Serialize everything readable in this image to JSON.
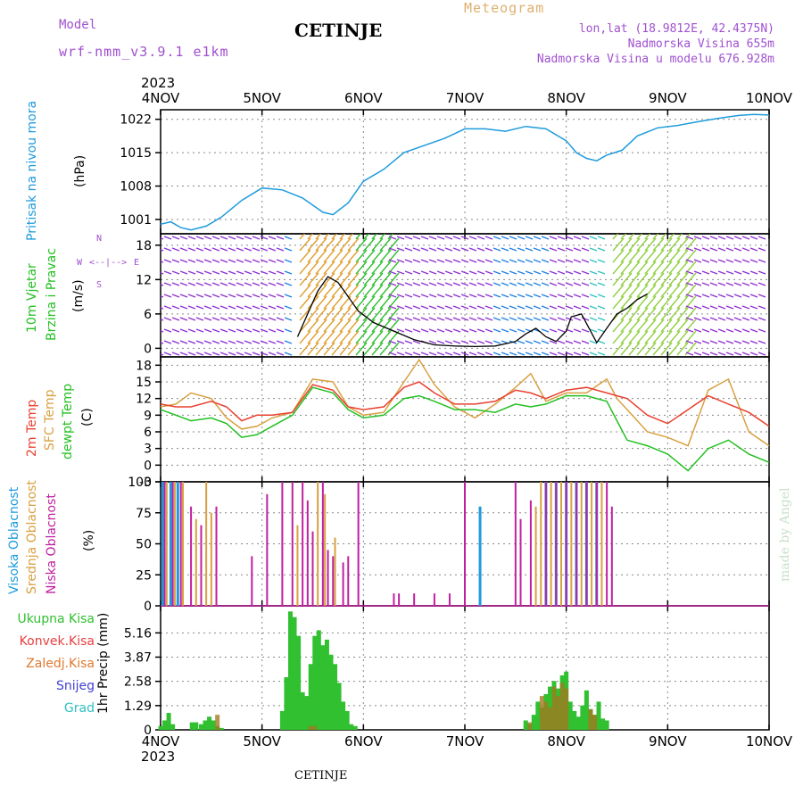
{
  "header": {
    "model_label": "Model",
    "model_name": "wrf-nmm_v3.9.1  e1km",
    "station": "CETINJE",
    "meteogram": "Meteogram",
    "lonlat": "lon,lat (18.9812E, 42.4375N)",
    "altitude": "Nadmorska Visina 655m",
    "model_altitude": "Nadmorska Visina u modelu 676.928m",
    "year_top": "2023",
    "year_bottom": "2023",
    "footer_station": "CETINJE",
    "watermark": "made by Angel"
  },
  "dates": [
    "4NOV",
    "5NOV",
    "6NOV",
    "7NOV",
    "8NOV",
    "9NOV",
    "10NOV"
  ],
  "panel_labels": {
    "pressure": "Pritisak na nivou mora",
    "pressure_unit": "(hPa)",
    "wind1": "10m Vjetar",
    "wind2": "Brzina i Pravac",
    "wind_unit": "(m/s)",
    "compass_n": "N",
    "compass_s": "S",
    "compass_e": "E",
    "compass_w": "W",
    "compass_line": "<--|-->",
    "temp1": "2m Temp",
    "temp2": "SFC Temp",
    "temp3": "dewpt Temp",
    "temp_unit": "(C)",
    "cloud1": "Visoka Oblacnost",
    "cloud2": "Srednja Oblacnost",
    "cloud3": "Niska Oblacnost",
    "cloud_unit": "(%)",
    "precip_axis": "1hr Precip (mm)",
    "precip_legend": [
      "Ukupna Kisa",
      "Konvek.Kisa",
      "Zaledj.Kisa",
      "Snijeg",
      "Grad"
    ]
  },
  "colors": {
    "pressure": "#1e9bdc",
    "temp2m": "#e84030",
    "sfc": "#d8a040",
    "dew": "#22c020",
    "cloud_high": "#1e9bdc",
    "cloud_mid": "#d8a040",
    "cloud_low": "#c020a0",
    "precip_total": "#30c030",
    "precip_conv": "#e84040",
    "precip_frozen": "#e07830",
    "precip_snow": "#4040d0",
    "precip_hail": "#30c0c0",
    "header_purple": "#a050d0",
    "meteogram": "#e0b070"
  },
  "chart_data": [
    {
      "type": "line",
      "title": "",
      "ylabel": "Pritisak na nivou mora (hPa)",
      "ylim": [
        998,
        1024
      ],
      "yticks": [
        "1001",
        "1008",
        "1015",
        "1022"
      ],
      "x_unit": "days since 4NOV 00Z",
      "series": [
        {
          "name": "Pritisak na nivou mora",
          "x": [
            0,
            0.1,
            0.2,
            0.3,
            0.45,
            0.6,
            0.8,
            1.0,
            1.2,
            1.4,
            1.6,
            1.7,
            1.85,
            2.0,
            2.2,
            2.4,
            2.6,
            2.8,
            3.0,
            3.2,
            3.4,
            3.6,
            3.8,
            4.0,
            4.1,
            4.2,
            4.3,
            4.4,
            4.55,
            4.7,
            4.9,
            5.1,
            5.3,
            5.5,
            5.7,
            5.85,
            6.0
          ],
          "y": [
            1000,
            1000.5,
            999.3,
            998.8,
            999.6,
            1001.5,
            1005,
            1007.6,
            1007.2,
            1005.5,
            1002.5,
            1002,
            1004.5,
            1009,
            1011.5,
            1015,
            1016.5,
            1018,
            1020,
            1020,
            1019.5,
            1020.5,
            1020,
            1017.5,
            1015,
            1013.8,
            1013.3,
            1014.5,
            1015.5,
            1018.5,
            1020.2,
            1020.7,
            1021.5,
            1022.2,
            1022.8,
            1023,
            1022.9
          ]
        }
      ]
    },
    {
      "type": "line",
      "title": "",
      "ylabel": "10m Vjetar Brzina i Pravac (m/s)",
      "ylim": [
        -1.5,
        20
      ],
      "yticks": [
        "0",
        "6",
        "12",
        "18"
      ],
      "x_unit": "days since 4NOV 00Z",
      "series": [
        {
          "name": "10m Vjetar",
          "x": [
            1.35,
            1.45,
            1.55,
            1.65,
            1.75,
            1.85,
            1.95,
            2.1,
            2.3,
            2.5,
            2.7,
            2.9,
            3.1,
            3.3,
            3.5,
            3.6,
            3.7,
            3.8,
            3.9,
            4.0,
            4.05,
            4.15,
            4.3,
            4.4,
            4.5,
            4.6,
            4.7,
            4.8
          ],
          "y": [
            2,
            6,
            10,
            12.5,
            11.5,
            9,
            6.5,
            4.5,
            3,
            1.5,
            0.6,
            0.4,
            0.3,
            0.4,
            1.2,
            2.5,
            3.5,
            2,
            1.2,
            3,
            5.5,
            6,
            1,
            3.5,
            6,
            7,
            8.5,
            9.5
          ]
        }
      ]
    },
    {
      "type": "line",
      "title": "",
      "ylabel": "(C)",
      "ylim": [
        -3,
        19.5
      ],
      "yticks": [
        "-3",
        "0",
        "3",
        "6",
        "9",
        "12",
        "15",
        "18"
      ],
      "x_unit": "days since 4NOV 00Z",
      "series": [
        {
          "name": "2m Temp",
          "x": [
            0,
            0.15,
            0.3,
            0.5,
            0.65,
            0.8,
            0.95,
            1.1,
            1.3,
            1.5,
            1.7,
            1.85,
            2.0,
            2.2,
            2.4,
            2.55,
            2.7,
            2.9,
            3.1,
            3.3,
            3.5,
            3.65,
            3.8,
            4.0,
            4.2,
            4.4,
            4.5,
            4.6,
            4.8,
            5.0,
            5.2,
            5.4,
            5.6,
            5.8,
            6.0
          ],
          "y": [
            11,
            10.5,
            10.5,
            11.5,
            10.5,
            8,
            9,
            9,
            9.5,
            14.5,
            13.5,
            10.5,
            10,
            10.5,
            14,
            15,
            13,
            11,
            11,
            11.5,
            13.5,
            13,
            12,
            13.5,
            14,
            13,
            12.5,
            12,
            9,
            7.5,
            10,
            12.5,
            11,
            9.5,
            7
          ]
        },
        {
          "name": "SFC Temp",
          "x": [
            0,
            0.15,
            0.3,
            0.5,
            0.65,
            0.8,
            0.95,
            1.1,
            1.3,
            1.5,
            1.7,
            1.85,
            2.0,
            2.2,
            2.4,
            2.55,
            2.7,
            2.9,
            3.1,
            3.3,
            3.5,
            3.65,
            3.8,
            4.0,
            4.2,
            4.4,
            4.5,
            4.6,
            4.8,
            5.0,
            5.2,
            5.4,
            5.6,
            5.8,
            6.0
          ],
          "y": [
            10.5,
            11,
            13,
            12,
            8.5,
            6.5,
            7,
            8.5,
            9.5,
            15.5,
            15,
            10.5,
            9,
            9.5,
            15,
            19,
            14.5,
            10.5,
            8.5,
            11,
            14,
            16.5,
            11.5,
            13,
            13,
            15.5,
            12,
            10,
            6,
            5,
            3.5,
            13.5,
            15.5,
            6,
            3.5
          ]
        },
        {
          "name": "dewpt Temp",
          "x": [
            0,
            0.15,
            0.3,
            0.5,
            0.65,
            0.8,
            0.95,
            1.1,
            1.3,
            1.5,
            1.7,
            1.85,
            2.0,
            2.2,
            2.4,
            2.55,
            2.7,
            2.9,
            3.1,
            3.3,
            3.5,
            3.65,
            3.8,
            4.0,
            4.2,
            4.4,
            4.5,
            4.6,
            4.8,
            5.0,
            5.2,
            5.4,
            5.6,
            5.8,
            6.0
          ],
          "y": [
            10,
            9,
            8,
            8.5,
            7.5,
            5,
            5.5,
            7,
            9,
            14,
            13,
            10,
            8.5,
            9,
            12,
            12.5,
            11.5,
            10,
            10,
            9.5,
            11,
            10.5,
            11,
            12.5,
            12.5,
            11.5,
            8,
            4.5,
            3.5,
            2,
            -1,
            3,
            4.5,
            2,
            0.5
          ]
        }
      ]
    },
    {
      "type": "bar",
      "title": "",
      "ylabel": "(%)",
      "ylim": [
        0,
        100
      ],
      "yticks": [
        "0",
        "25",
        "50",
        "75",
        "100"
      ],
      "x_unit": "days since 4NOV 00Z",
      "series": [
        {
          "name": "Visoka Oblacnost",
          "x": [
            0.02,
            0.1,
            0.17,
            3.15,
            3.8,
            3.9,
            4.0,
            4.1,
            4.2,
            4.3
          ],
          "y": [
            100,
            100,
            100,
            80,
            100,
            100,
            100,
            100,
            100,
            100
          ]
        },
        {
          "name": "Srednja Oblacnost",
          "x": [
            0.06,
            0.14,
            0.22,
            0.35,
            0.45,
            0.5,
            1.35,
            1.55,
            1.62,
            1.72,
            3.7,
            3.75,
            3.85,
            3.95,
            4.05,
            4.15,
            4.25,
            4.35
          ],
          "y": [
            100,
            100,
            100,
            70,
            100,
            75,
            65,
            100,
            90,
            55,
            80,
            100,
            100,
            100,
            100,
            100,
            100,
            100
          ]
        },
        {
          "name": "Niska Oblacnost",
          "x": [
            0.04,
            0.12,
            0.2,
            0.3,
            0.4,
            0.55,
            0.9,
            1.05,
            1.2,
            1.3,
            1.4,
            1.45,
            1.5,
            1.6,
            1.65,
            1.7,
            1.8,
            1.85,
            1.95,
            2.3,
            2.35,
            2.5,
            2.7,
            2.85,
            3.0,
            3.5,
            3.55,
            3.65,
            3.8,
            3.9,
            4.0,
            4.1,
            4.2,
            4.3,
            4.4,
            4.45
          ],
          "y": [
            100,
            100,
            100,
            80,
            65,
            80,
            40,
            90,
            100,
            100,
            100,
            85,
            60,
            100,
            45,
            40,
            35,
            40,
            100,
            10,
            10,
            10,
            10,
            10,
            100,
            100,
            70,
            85,
            100,
            100,
            100,
            100,
            100,
            100,
            100,
            80
          ]
        }
      ]
    },
    {
      "type": "bar",
      "title": "",
      "ylabel": "1hr Precip (mm)",
      "ylim": [
        0,
        6.6
      ],
      "yticks": [
        "0",
        "1.29",
        "2.58",
        "3.87",
        "5.16"
      ],
      "x_unit": "days since 4NOV 00Z",
      "series": [
        {
          "name": "Ukupna Kisa",
          "x": [
            0.0,
            0.04,
            0.08,
            0.12,
            0.31,
            0.35,
            0.4,
            0.44,
            0.48,
            0.52,
            0.56,
            0.6,
            1.2,
            1.24,
            1.28,
            1.32,
            1.36,
            1.4,
            1.44,
            1.48,
            1.52,
            1.56,
            1.6,
            1.64,
            1.68,
            1.72,
            1.76,
            1.8,
            1.84,
            1.88,
            1.92,
            3.6,
            3.64,
            3.68,
            3.72,
            3.76,
            3.8,
            3.84,
            3.88,
            3.92,
            3.96,
            4.0,
            4.04,
            4.08,
            4.12,
            4.16,
            4.2,
            4.24,
            4.28,
            4.32,
            4.36,
            4.4
          ],
          "y": [
            0.2,
            0.5,
            0.9,
            0.3,
            0.4,
            0.4,
            0.3,
            0.5,
            0.7,
            0.5,
            0.2,
            0.1,
            1.0,
            2.8,
            6.3,
            6.0,
            5.0,
            2.0,
            1.8,
            3.5,
            5.0,
            5.3,
            4.5,
            4.8,
            4.0,
            3.5,
            2.5,
            1.5,
            1.0,
            0.3,
            0.2,
            0.5,
            0.3,
            0.8,
            1.5,
            1.2,
            1.9,
            2.3,
            2.6,
            2.2,
            2.9,
            3.1,
            1.5,
            1.0,
            0.7,
            1.3,
            2.1,
            1.1,
            0.8,
            1.5,
            0.6,
            0.5
          ]
        },
        {
          "name": "Konvek.Kisa",
          "x": [
            0.56,
            1.48,
            1.52,
            3.64,
            3.76,
            3.8,
            3.84,
            3.88,
            3.92,
            3.96,
            4.0,
            4.24,
            4.28
          ],
          "y": [
            0.8,
            0.2,
            0.2,
            0.4,
            1.8,
            1.5,
            1.2,
            2.3,
            1.8,
            2.5,
            2.2,
            1.1,
            0.8
          ]
        },
        {
          "name": "Zaledj.Kisa",
          "x": [],
          "y": []
        },
        {
          "name": "Snijeg",
          "x": [],
          "y": []
        },
        {
          "name": "Grad",
          "x": [],
          "y": []
        }
      ]
    }
  ]
}
